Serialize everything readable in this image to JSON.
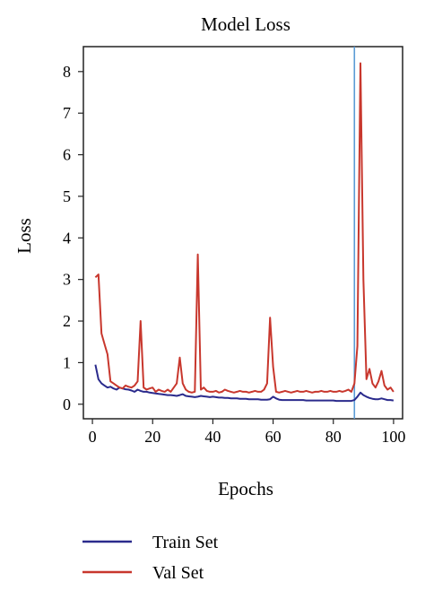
{
  "chart_data": {
    "type": "line",
    "title": "Model Loss",
    "xlabel": "Epochs",
    "ylabel": "Loss",
    "xlim": [
      -3,
      103
    ],
    "ylim": [
      -0.35,
      8.6
    ],
    "xticks": [
      0,
      20,
      40,
      60,
      80,
      100
    ],
    "yticks": [
      0,
      1,
      2,
      3,
      4,
      5,
      6,
      7,
      8
    ],
    "grid": false,
    "legend_position": "bottom",
    "vline": {
      "x": 87,
      "color": "#5b9bd5"
    },
    "series": [
      {
        "name": "Train Set",
        "color": "#2a2a8c",
        "x": [
          1,
          2,
          3,
          4,
          5,
          6,
          7,
          8,
          9,
          10,
          11,
          12,
          13,
          14,
          15,
          16,
          17,
          18,
          19,
          20,
          21,
          22,
          23,
          24,
          25,
          26,
          27,
          28,
          29,
          30,
          31,
          32,
          33,
          34,
          35,
          36,
          37,
          38,
          39,
          40,
          41,
          42,
          43,
          44,
          45,
          46,
          47,
          48,
          49,
          50,
          51,
          52,
          53,
          54,
          55,
          56,
          57,
          58,
          59,
          60,
          61,
          62,
          63,
          64,
          65,
          66,
          67,
          68,
          69,
          70,
          71,
          72,
          73,
          74,
          75,
          76,
          77,
          78,
          79,
          80,
          81,
          82,
          83,
          84,
          85,
          86,
          87,
          88,
          89,
          90,
          91,
          92,
          93,
          94,
          95,
          96,
          97,
          98,
          99,
          100
        ],
        "values": [
          0.95,
          0.6,
          0.5,
          0.45,
          0.4,
          0.42,
          0.38,
          0.35,
          0.4,
          0.38,
          0.36,
          0.35,
          0.33,
          0.3,
          0.35,
          0.32,
          0.3,
          0.3,
          0.28,
          0.27,
          0.26,
          0.25,
          0.24,
          0.23,
          0.22,
          0.22,
          0.21,
          0.2,
          0.22,
          0.24,
          0.2,
          0.19,
          0.18,
          0.17,
          0.18,
          0.2,
          0.19,
          0.18,
          0.17,
          0.18,
          0.17,
          0.16,
          0.16,
          0.15,
          0.15,
          0.14,
          0.14,
          0.14,
          0.13,
          0.13,
          0.13,
          0.12,
          0.12,
          0.12,
          0.12,
          0.11,
          0.11,
          0.11,
          0.12,
          0.18,
          0.14,
          0.11,
          0.1,
          0.1,
          0.1,
          0.1,
          0.1,
          0.1,
          0.1,
          0.1,
          0.09,
          0.09,
          0.09,
          0.09,
          0.09,
          0.09,
          0.09,
          0.09,
          0.09,
          0.09,
          0.08,
          0.08,
          0.08,
          0.08,
          0.08,
          0.08,
          0.1,
          0.18,
          0.28,
          0.22,
          0.18,
          0.15,
          0.13,
          0.12,
          0.12,
          0.14,
          0.12,
          0.1,
          0.1,
          0.09
        ]
      },
      {
        "name": "Val Set",
        "color": "#c8372d",
        "x": [
          1,
          2,
          3,
          4,
          5,
          6,
          7,
          8,
          9,
          10,
          11,
          12,
          13,
          14,
          15,
          16,
          17,
          18,
          19,
          20,
          21,
          22,
          23,
          24,
          25,
          26,
          27,
          28,
          29,
          30,
          31,
          32,
          33,
          34,
          35,
          36,
          37,
          38,
          39,
          40,
          41,
          42,
          43,
          44,
          45,
          46,
          47,
          48,
          49,
          50,
          51,
          52,
          53,
          54,
          55,
          56,
          57,
          58,
          59,
          60,
          61,
          62,
          63,
          64,
          65,
          66,
          67,
          68,
          69,
          70,
          71,
          72,
          73,
          74,
          75,
          76,
          77,
          78,
          79,
          80,
          81,
          82,
          83,
          84,
          85,
          86,
          87,
          88,
          89,
          90,
          91,
          92,
          93,
          94,
          95,
          96,
          97,
          98,
          99,
          100
        ],
        "values": [
          3.05,
          3.12,
          1.7,
          1.45,
          1.2,
          0.55,
          0.5,
          0.45,
          0.4,
          0.38,
          0.45,
          0.42,
          0.4,
          0.45,
          0.55,
          2.0,
          0.4,
          0.35,
          0.38,
          0.4,
          0.3,
          0.35,
          0.32,
          0.3,
          0.35,
          0.3,
          0.4,
          0.5,
          1.12,
          0.5,
          0.35,
          0.3,
          0.28,
          0.3,
          3.6,
          0.35,
          0.4,
          0.32,
          0.3,
          0.3,
          0.32,
          0.28,
          0.3,
          0.35,
          0.32,
          0.3,
          0.28,
          0.3,
          0.32,
          0.3,
          0.3,
          0.28,
          0.3,
          0.32,
          0.3,
          0.3,
          0.35,
          0.5,
          2.08,
          0.9,
          0.3,
          0.28,
          0.3,
          0.32,
          0.3,
          0.28,
          0.3,
          0.32,
          0.3,
          0.3,
          0.32,
          0.3,
          0.28,
          0.3,
          0.3,
          0.32,
          0.3,
          0.3,
          0.32,
          0.3,
          0.3,
          0.32,
          0.3,
          0.32,
          0.35,
          0.3,
          0.5,
          1.4,
          8.2,
          3.0,
          0.6,
          0.85,
          0.5,
          0.4,
          0.55,
          0.8,
          0.45,
          0.35,
          0.4,
          0.3
        ]
      }
    ]
  }
}
